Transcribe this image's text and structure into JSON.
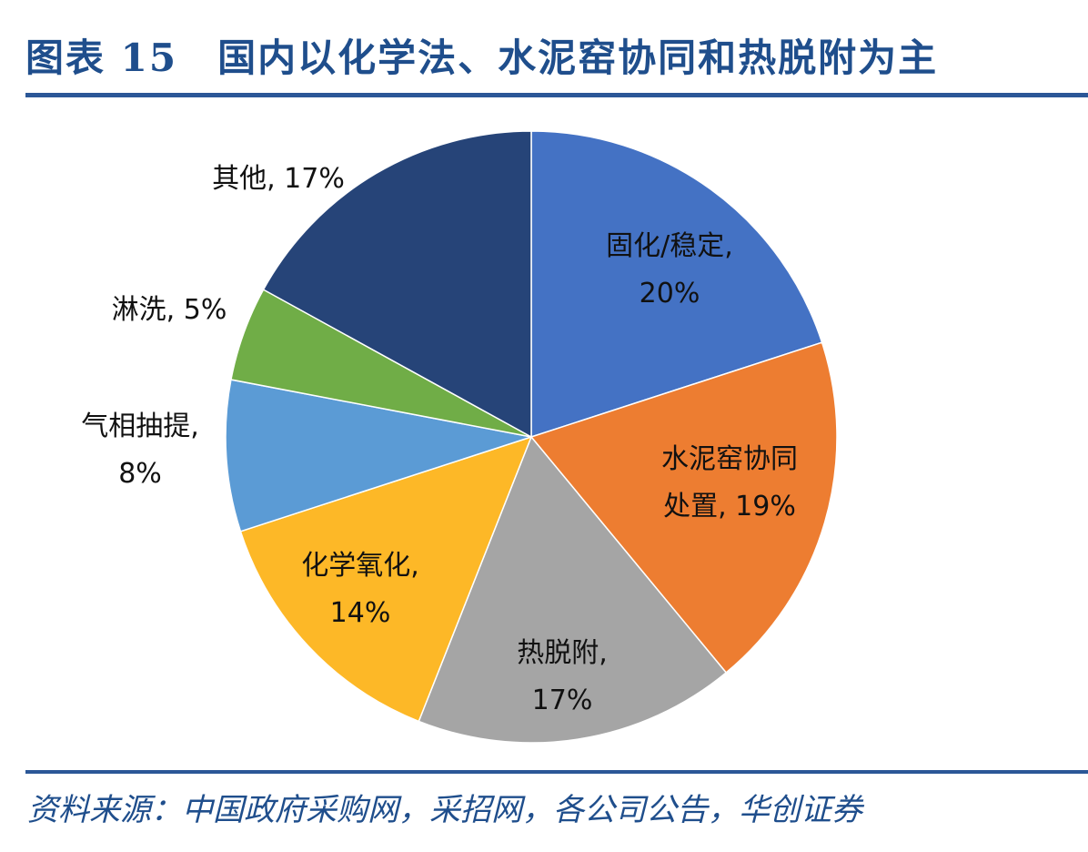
{
  "figure": {
    "title": "图表 15　国内以化学法、水泥窑协同和热脱附为主",
    "source": "资料来源：中国政府采购网，采招网，各公司公告，华创证券"
  },
  "chart_data": {
    "type": "pie",
    "title": "",
    "start_angle_deg": 0,
    "direction": "clockwise",
    "slices": [
      {
        "label_lines": [
          "固化/稳定,",
          "20%"
        ],
        "name": "固化/稳定",
        "value": 20,
        "color": "#4472c4",
        "label_position": "inside"
      },
      {
        "label_lines": [
          "水泥窑协同",
          "处置, 19%"
        ],
        "name": "水泥窑协同处置",
        "value": 19,
        "color": "#ed7d31",
        "label_position": "inside"
      },
      {
        "label_lines": [
          "热脱附,",
          "17%"
        ],
        "name": "热脱附",
        "value": 17,
        "color": "#a5a5a5",
        "label_position": "inside"
      },
      {
        "label_lines": [
          "化学氧化,",
          "14%"
        ],
        "name": "化学氧化",
        "value": 14,
        "color": "#fdb827",
        "label_position": "inside"
      },
      {
        "label_lines": [
          "气相抽提,",
          "8%"
        ],
        "name": "气相抽提",
        "value": 8,
        "color": "#5b9bd5",
        "label_position": "outside"
      },
      {
        "label_lines": [
          "淋洗, 5%"
        ],
        "name": "淋洗",
        "value": 5,
        "color": "#70ad47",
        "label_position": "outside"
      },
      {
        "label_lines": [
          "其他, 17%"
        ],
        "name": "其他",
        "value": 17,
        "color": "#264478",
        "label_position": "outside"
      }
    ]
  }
}
